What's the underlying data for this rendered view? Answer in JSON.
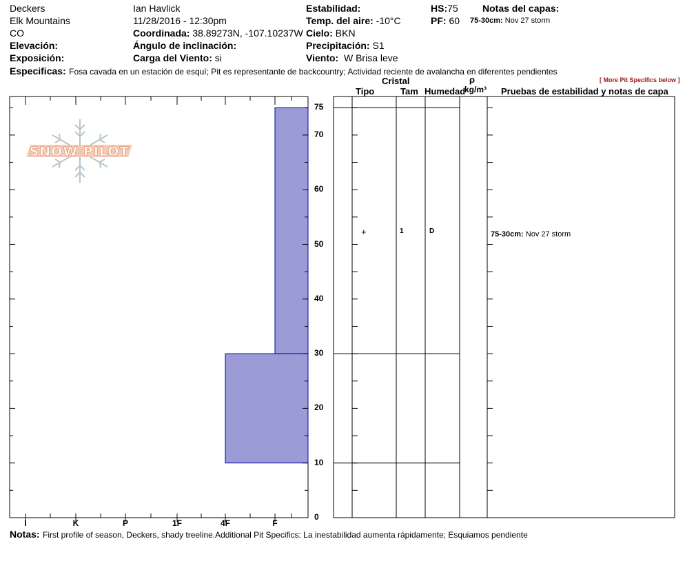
{
  "header": {
    "location": "Deckers",
    "range": "Elk Mountains",
    "state": "CO",
    "elevation_label": "Elevación:",
    "exposure_label": "Exposición:",
    "observer": "Ian Havlick",
    "datetime": "11/28/2016 - 12:30pm",
    "coord_label": "Coordinada:",
    "coord_value": "38.89273N, -107.10237W",
    "slope_label": "Ángulo de inclinación:",
    "wind_load_label": "Carga del Viento:",
    "wind_load_value": "si",
    "stability_label": "Estabilidad:",
    "air_temp_label": "Temp. del aire:",
    "air_temp_value": "-10°C",
    "sky_label": "Cielo:",
    "sky_value": "BKN",
    "precip_label": "Precipitación:",
    "precip_value": "S1",
    "wind_label": "Viento:",
    "wind_value": "W Brisa leve",
    "hs_label": "HS:",
    "hs_value": "75",
    "pf_label": "PF:",
    "pf_value": "60",
    "layer_notes_label": "Notas del capas:",
    "layer_notes_range": "75-30cm:",
    "layer_notes_text": "Nov 27 storm",
    "specifics_label": "Especificas:",
    "specifics_text": "Fosa cavada en un estación de esquí; Pit es representante de backcountry; Actividad reciente de avalancha en diferentes pendientes",
    "more_link": "[ More Pit Specifics below ]"
  },
  "columns": {
    "cristal": "Cristal",
    "tipo": "Tipo",
    "tam": "Tam",
    "humedad": "Humedad",
    "rho": "ρ",
    "density_unit": "kg/m³",
    "tests": "Pruebas de estabilidad y notas de capa"
  },
  "logo": {
    "text": "SNOW PILOT"
  },
  "layer_row": {
    "tipo": "+",
    "tam": "1",
    "humedad": "D",
    "note_range": "75-30cm:",
    "note_text": "Nov 27 storm"
  },
  "footer": {
    "notes_label": "Notas:",
    "notes_text": "First profile of season, Deckers, shady treeline.Additional Pit Specifics: La inestabilidad aumenta rápidamente; Esquiamos pendiente"
  },
  "colors": {
    "layer_fill": "#9b9bd6",
    "layer_stroke": "#0000aa",
    "logo_fill": "#f0c8b4",
    "logo_snowflake": "#b8c4cc"
  },
  "chart_data": {
    "type": "hardness-profile",
    "y_label_ticks": [
      "75",
      "70",
      "60",
      "50",
      "40",
      "30",
      "20",
      "10",
      "0"
    ],
    "y_range": [
      0,
      75
    ],
    "hardness_labels": [
      "I",
      "K",
      "P",
      "1F",
      "4F",
      "F"
    ],
    "layers": [
      {
        "top": 75,
        "bottom": 30,
        "hardness": "F"
      },
      {
        "top": 30,
        "bottom": 10,
        "hardness": "4F"
      }
    ],
    "boundaries": [
      75,
      30,
      10
    ]
  }
}
